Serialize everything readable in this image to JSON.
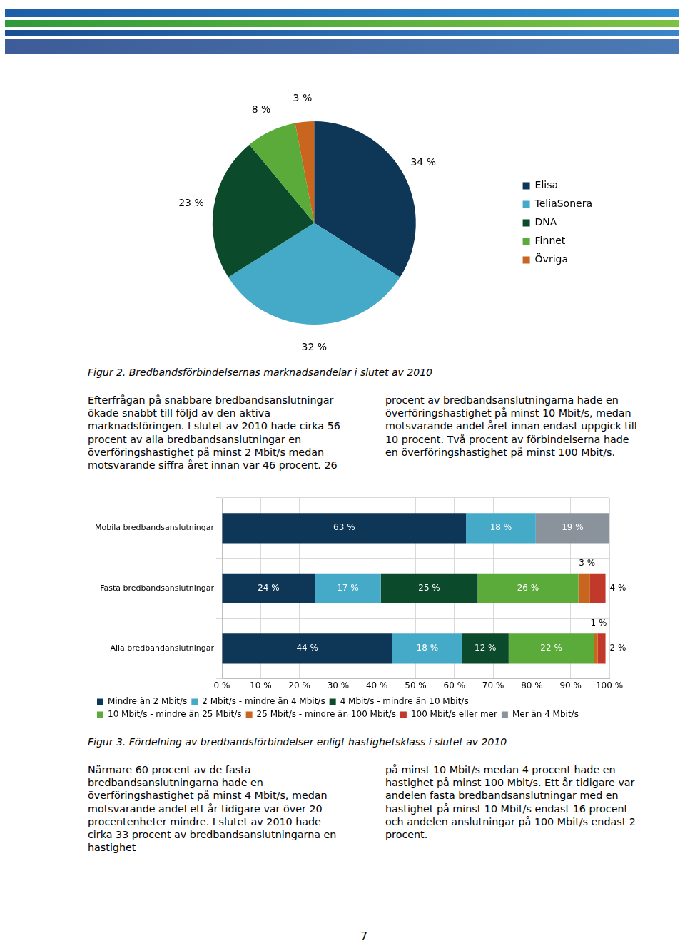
{
  "chart_data": [
    {
      "type": "pie",
      "title": "Figur 2. Bredbandsförbindelsernas marknadsandelar i slutet av 2010",
      "categories": [
        "Elisa",
        "TeliaSonera",
        "DNA",
        "Finnet",
        "Övriga"
      ],
      "values": [
        34,
        32,
        23,
        8,
        3
      ],
      "value_labels": [
        "34 %",
        "32 %",
        "23 %",
        "8 %",
        "3 %"
      ],
      "colors": [
        "#0d3657",
        "#45aac8",
        "#0b4a2a",
        "#5aab3a",
        "#c8651e"
      ],
      "data_labels": true,
      "legend": "right"
    },
    {
      "type": "bar",
      "title": "Figur 3. Fördelning av bredbandsförbindelser enligt hastighetsklass i slutet av 2010",
      "orientation": "horizontal",
      "stacked": true,
      "data_labels": true,
      "legend": "bottom",
      "grid": true,
      "categories": [
        "Mobila bredbandsanslutningar",
        "Fasta bredbandsanslutningar",
        "Alla bredbandanslutningar"
      ],
      "xlim": [
        0,
        100
      ],
      "xticks": [
        {
          "value": 0,
          "label": "0 %"
        },
        {
          "value": 10,
          "label": "10 %"
        },
        {
          "value": 20,
          "label": "20 %"
        },
        {
          "value": 30,
          "label": "30 %"
        },
        {
          "value": 40,
          "label": "40 %"
        },
        {
          "value": 50,
          "label": "50 %"
        },
        {
          "value": 60,
          "label": "60 %"
        },
        {
          "value": 70,
          "label": "70 %"
        },
        {
          "value": 80,
          "label": "80 %"
        },
        {
          "value": 90,
          "label": "90 %"
        },
        {
          "value": 100,
          "label": "100 %"
        }
      ],
      "series": [
        {
          "name": "Mindre än 2 Mbit/s",
          "color": "#0d3657",
          "values": [
            63,
            24,
            44
          ],
          "value_labels": [
            "63 %",
            "24 %",
            "44 %"
          ]
        },
        {
          "name": "2 Mbit/s - mindre än 4 Mbit/s",
          "color": "#45aac8",
          "values": [
            18,
            17,
            18
          ],
          "value_labels": [
            "18 %",
            "17 %",
            "18 %"
          ]
        },
        {
          "name": "4 Mbit/s - mindre än 10 Mbit/s",
          "color": "#0b4a2a",
          "values": [
            null,
            25,
            12
          ],
          "value_labels": [
            null,
            "25 %",
            "12 %"
          ]
        },
        {
          "name": "10 Mbit/s - mindre än 25 Mbit/s",
          "color": "#5aab3a",
          "values": [
            null,
            26,
            22
          ],
          "value_labels": [
            null,
            "26 %",
            "22 %"
          ]
        },
        {
          "name": "25 Mbit/s - mindre än 100 Mbit/s",
          "color": "#c8651e",
          "values": [
            null,
            3,
            1
          ],
          "value_labels": [
            null,
            "3 %",
            "1 %"
          ]
        },
        {
          "name": "100 Mbit/s eller mer",
          "color": "#c0392b",
          "values": [
            null,
            4,
            2
          ],
          "value_labels": [
            null,
            "4 %",
            "2 %"
          ]
        },
        {
          "name": "Mer än 4 Mbit/s",
          "color": "#8a939b",
          "values": [
            19,
            null,
            null
          ],
          "value_labels": [
            "19 %",
            null,
            null
          ]
        }
      ]
    }
  ],
  "paragraphs": [
    {
      "left": "Efterfrågan på snabbare bredbandsanslutningar ökade snabbt till följd av den aktiva marknadsföringen. I slutet av 2010 hade cirka 56 procent av alla bredbandsanslutningar en överföringshastighet på minst 2 Mbit/s medan motsvarande siffra året innan var 46 procent. 26",
      "right": "procent av bredbandsanslutningarna hade en överföringshastighet på minst 10 Mbit/s, medan motsvarande andel året innan endast uppgick till 10 procent. Två procent av förbindelserna hade en överföringshastighet på minst 100 Mbit/s."
    },
    {
      "left": "Närmare 60 procent av de fasta bredbandsanslutningarna hade en överföringshastighet på minst 4 Mbit/s, medan motsvarande andel ett år tidigare var över 20 procentenheter mindre. I slutet av 2010 hade cirka 33 procent av bredbandsanslutningarna en hastighet",
      "right": "på minst 10 Mbit/s medan 4 procent hade en hastighet på minst 100 Mbit/s. Ett år tidigare var andelen fasta bredbandsanslutningar med en hastighet på minst 10 Mbit/s endast 16 procent och andelen anslutningar på 100 Mbit/s endast 2 procent."
    }
  ],
  "page_number": "7"
}
